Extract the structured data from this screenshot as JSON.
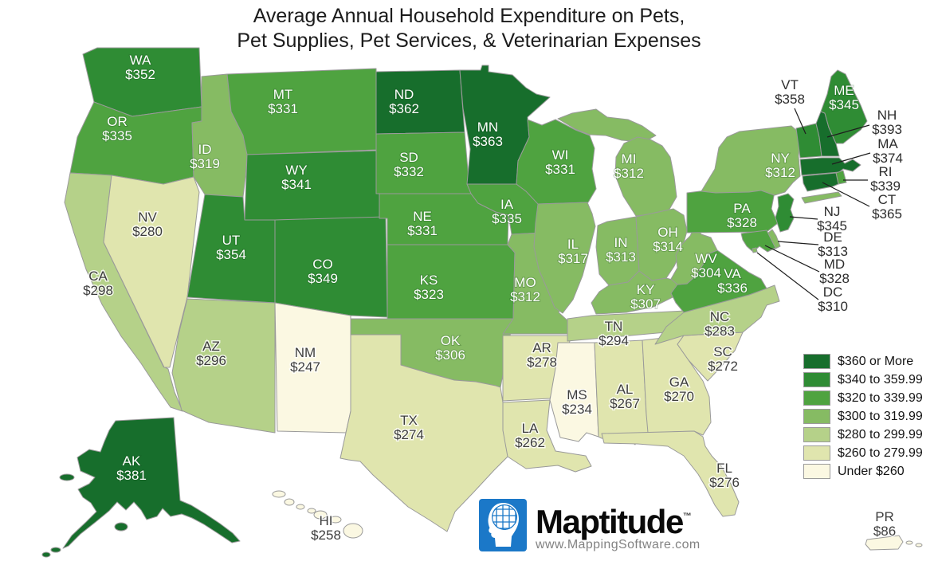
{
  "title": {
    "line1": "Average Annual Household Expenditure on Pets,",
    "line2": "Pet Supplies, Pet Services, & Veterinarian Expenses"
  },
  "legend": {
    "items": [
      {
        "label": "$360 or More",
        "color": "#176e2c"
      },
      {
        "label": "$340 to 359.99",
        "color": "#2f8c34"
      },
      {
        "label": "$320 to 339.99",
        "color": "#4fa340"
      },
      {
        "label": "$300 to 319.99",
        "color": "#86bb63"
      },
      {
        "label": "$280 to 299.99",
        "color": "#b5d189"
      },
      {
        "label": "$260 to 279.99",
        "color": "#e0e5ae"
      },
      {
        "label": "Under $260",
        "color": "#fbf8e2"
      }
    ]
  },
  "logo": {
    "brand": "Maptitude",
    "trademark": "™",
    "url": "www.MappingSoftware.com"
  },
  "chart_data": {
    "type": "choropleth",
    "title": "Average Annual Household Expenditure on Pets, Pet Supplies, Pet Services, & Veterinarian Expenses",
    "legend_position": "right",
    "bands": [
      "$360 or More",
      "$340 to 359.99",
      "$320 to 339.99",
      "$300 to 319.99",
      "$280 to 299.99",
      "$260 to 279.99",
      "Under $260"
    ]
  },
  "states": [
    {
      "abbr": "WA",
      "value": "$352",
      "band": 2
    },
    {
      "abbr": "OR",
      "value": "$335",
      "band": 3
    },
    {
      "abbr": "CA",
      "value": "$298",
      "band": 5
    },
    {
      "abbr": "NV",
      "value": "$280",
      "band": 6
    },
    {
      "abbr": "ID",
      "value": "$319",
      "band": 4
    },
    {
      "abbr": "MT",
      "value": "$331",
      "band": 3
    },
    {
      "abbr": "WY",
      "value": "$341",
      "band": 2
    },
    {
      "abbr": "UT",
      "value": "$354",
      "band": 2
    },
    {
      "abbr": "CO",
      "value": "$349",
      "band": 2
    },
    {
      "abbr": "AZ",
      "value": "$296",
      "band": 5
    },
    {
      "abbr": "NM",
      "value": "$247",
      "band": 7
    },
    {
      "abbr": "ND",
      "value": "$362",
      "band": 1
    },
    {
      "abbr": "SD",
      "value": "$332",
      "band": 3
    },
    {
      "abbr": "NE",
      "value": "$331",
      "band": 3
    },
    {
      "abbr": "KS",
      "value": "$323",
      "band": 3
    },
    {
      "abbr": "OK",
      "value": "$306",
      "band": 4
    },
    {
      "abbr": "TX",
      "value": "$274",
      "band": 6
    },
    {
      "abbr": "MN",
      "value": "$363",
      "band": 1
    },
    {
      "abbr": "IA",
      "value": "$335",
      "band": 3
    },
    {
      "abbr": "MO",
      "value": "$312",
      "band": 4
    },
    {
      "abbr": "AR",
      "value": "$278",
      "band": 6
    },
    {
      "abbr": "LA",
      "value": "$262",
      "band": 6
    },
    {
      "abbr": "WI",
      "value": "$331",
      "band": 3
    },
    {
      "abbr": "MI",
      "value": "$312",
      "band": 4
    },
    {
      "abbr": "IL",
      "value": "$317",
      "band": 4
    },
    {
      "abbr": "IN",
      "value": "$313",
      "band": 4
    },
    {
      "abbr": "OH",
      "value": "$314",
      "band": 4
    },
    {
      "abbr": "KY",
      "value": "$307",
      "band": 4
    },
    {
      "abbr": "TN",
      "value": "$294",
      "band": 5
    },
    {
      "abbr": "MS",
      "value": "$234",
      "band": 7
    },
    {
      "abbr": "AL",
      "value": "$267",
      "band": 6
    },
    {
      "abbr": "GA",
      "value": "$270",
      "band": 6
    },
    {
      "abbr": "SC",
      "value": "$272",
      "band": 6
    },
    {
      "abbr": "NC",
      "value": "$283",
      "band": 5
    },
    {
      "abbr": "FL",
      "value": "$276",
      "band": 6
    },
    {
      "abbr": "VA",
      "value": "$336",
      "band": 3
    },
    {
      "abbr": "WV",
      "value": "$304",
      "band": 4
    },
    {
      "abbr": "PA",
      "value": "$328",
      "band": 3
    },
    {
      "abbr": "NY",
      "value": "$312",
      "band": 4
    },
    {
      "abbr": "VT",
      "value": "$358",
      "band": 2
    },
    {
      "abbr": "NH",
      "value": "$393",
      "band": 1
    },
    {
      "abbr": "ME",
      "value": "$345",
      "band": 2
    },
    {
      "abbr": "MA",
      "value": "$374",
      "band": 1
    },
    {
      "abbr": "RI",
      "value": "$339",
      "band": 3
    },
    {
      "abbr": "CT",
      "value": "$365",
      "band": 1
    },
    {
      "abbr": "NJ",
      "value": "$345",
      "band": 2
    },
    {
      "abbr": "DE",
      "value": "$313",
      "band": 4
    },
    {
      "abbr": "MD",
      "value": "$328",
      "band": 3
    },
    {
      "abbr": "DC",
      "value": "$310",
      "band": 4
    },
    {
      "abbr": "AK",
      "value": "$381",
      "band": 1
    },
    {
      "abbr": "HI",
      "value": "$258",
      "band": 7
    },
    {
      "abbr": "PR",
      "value": "$86",
      "band": 7
    }
  ]
}
